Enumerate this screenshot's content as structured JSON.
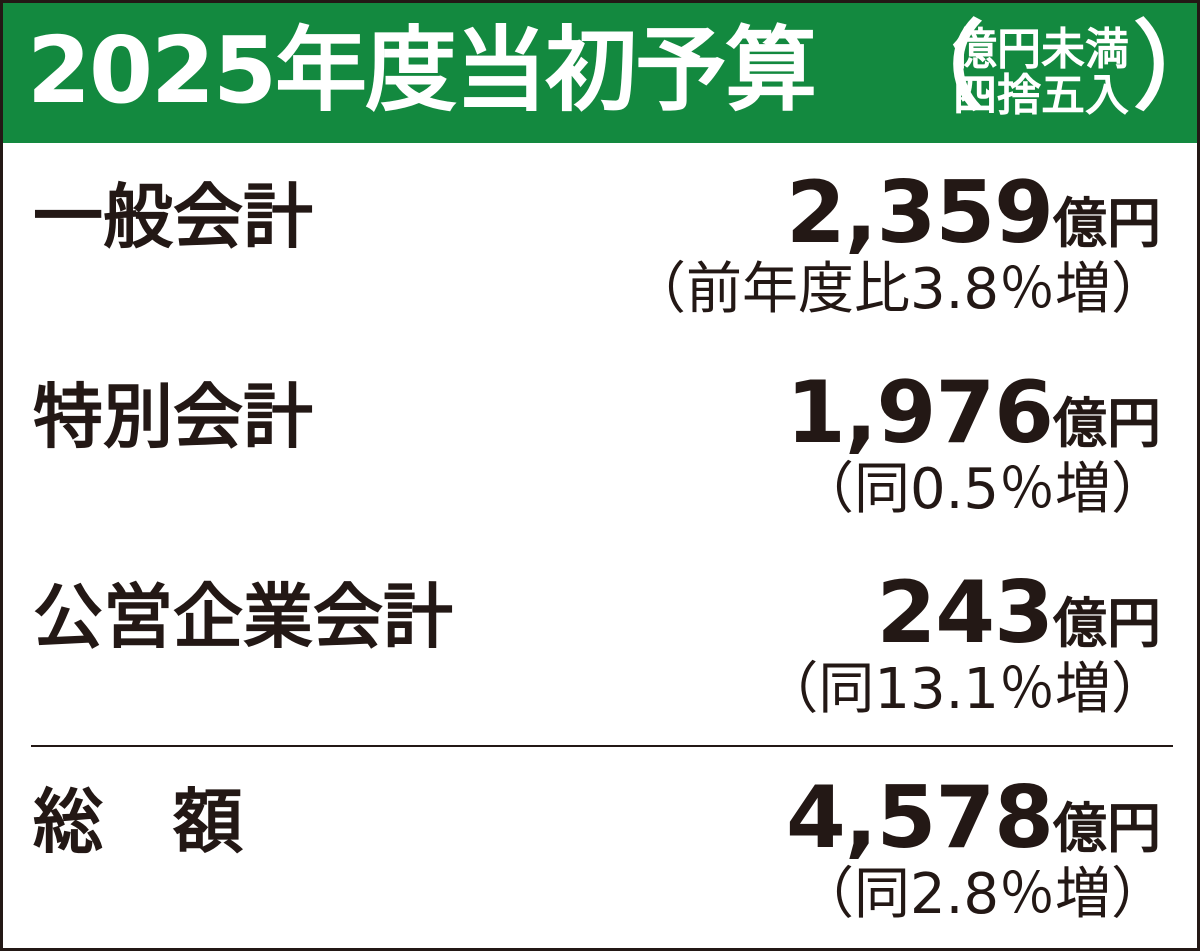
{
  "header": {
    "title": "2025年度当初予算",
    "note": {
      "open": "（",
      "lines": [
        "億円未満",
        "四捨五入"
      ],
      "close": "）"
    }
  },
  "rows": [
    {
      "label": "一般会計",
      "amount": "2,359",
      "unit": "億円",
      "change": "（前年度比3.8％増）"
    },
    {
      "label": "特別会計",
      "amount": "1,976",
      "unit": "億円",
      "change": "（同0.5％増）"
    },
    {
      "label": "公営企業会計",
      "amount": "243",
      "unit": "億円",
      "change": "（同13.1％増）"
    }
  ],
  "total": {
    "label": "総　額",
    "amount": "4,578",
    "unit": "億円",
    "change": "（同2.8％増）"
  }
}
